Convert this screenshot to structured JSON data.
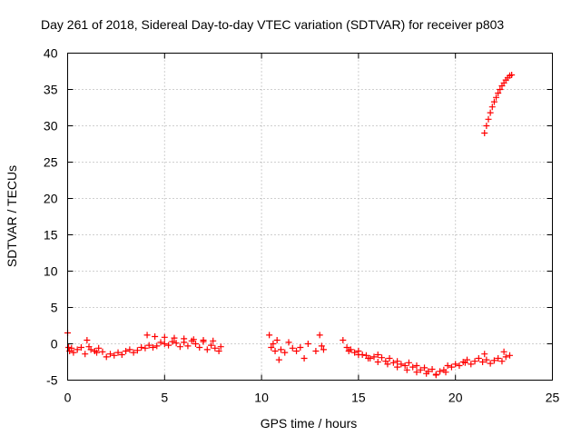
{
  "chart_data": {
    "type": "scatter",
    "title": "Day 261 of 2018, Sidereal Day-to-day VTEC variation (SDTVAR) for receiver p803",
    "xlabel": "GPS time / hours",
    "ylabel": "SDTVAR / TECUs",
    "xlim": [
      0,
      25
    ],
    "ylim": [
      -5,
      40
    ],
    "xticks": [
      "0",
      "5",
      "10",
      "15",
      "20",
      "25"
    ],
    "yticks": [
      "-5",
      "0",
      "5",
      "10",
      "15",
      "20",
      "25",
      "30",
      "35",
      "40"
    ],
    "grid": true,
    "marker": "plus",
    "color": "#ff0000",
    "series": [
      {
        "name": "SDTVAR",
        "x": [
          0.0,
          0.05,
          0.1,
          0.2,
          0.3,
          0.5,
          0.7,
          0.9,
          1.0,
          1.1,
          1.2,
          1.4,
          1.5,
          1.6,
          1.8,
          2.0,
          2.2,
          2.4,
          2.6,
          2.8,
          3.0,
          3.2,
          3.4,
          3.6,
          3.8,
          4.0,
          4.2,
          4.4,
          4.6,
          4.8,
          5.0,
          5.2,
          5.4,
          5.6,
          5.8,
          6.0,
          6.2,
          6.4,
          6.6,
          6.8,
          7.0,
          7.2,
          7.4,
          7.6,
          7.8,
          7.9,
          4.1,
          4.5,
          5.0,
          5.5,
          6.0,
          6.5,
          7.0,
          7.5,
          10.4,
          10.5,
          10.6,
          10.7,
          10.8,
          10.9,
          11.0,
          11.2,
          11.4,
          11.6,
          11.8,
          12.0,
          12.2,
          12.4,
          12.8,
          13.0,
          13.1,
          13.2,
          14.2,
          14.4,
          14.6,
          14.8,
          15.0,
          15.2,
          15.4,
          15.6,
          15.8,
          16.0,
          16.2,
          16.4,
          16.6,
          16.8,
          17.0,
          17.2,
          17.4,
          17.6,
          17.8,
          18.0,
          18.2,
          18.4,
          18.6,
          18.8,
          19.0,
          19.2,
          19.4,
          19.6,
          19.8,
          20.0,
          20.2,
          20.4,
          20.6,
          20.8,
          21.0,
          21.2,
          21.4,
          21.6,
          21.8,
          22.0,
          22.2,
          22.4,
          22.6,
          22.8,
          14.5,
          15.0,
          15.5,
          16.0,
          16.5,
          17.0,
          17.5,
          18.0,
          18.5,
          19.0,
          19.5,
          20.5,
          21.5,
          22.5,
          21.5,
          21.6,
          21.7,
          21.8,
          21.9,
          22.0,
          22.1,
          22.2,
          22.3,
          22.4,
          22.5,
          22.6,
          22.7,
          22.8,
          22.9
        ],
        "y": [
          1.5,
          -0.5,
          -1.0,
          -0.6,
          -1.2,
          -0.8,
          -0.5,
          -1.4,
          0.5,
          -0.4,
          -0.8,
          -1.0,
          -1.2,
          -0.6,
          -1.1,
          -1.8,
          -1.4,
          -1.6,
          -1.2,
          -1.5,
          -1.0,
          -0.8,
          -1.2,
          -0.9,
          -0.5,
          -0.6,
          -0.2,
          -0.5,
          -0.3,
          0.2,
          0.0,
          -0.2,
          0.3,
          0.1,
          -0.4,
          0.2,
          -0.3,
          0.4,
          0.0,
          -0.5,
          0.3,
          -0.8,
          -0.2,
          -0.6,
          -1.0,
          -0.4,
          1.2,
          1.0,
          0.9,
          0.8,
          0.7,
          0.6,
          0.5,
          0.4,
          1.2,
          -0.5,
          0.0,
          -1.0,
          0.5,
          -2.2,
          -0.8,
          -1.2,
          0.2,
          -0.6,
          -1.0,
          -0.5,
          -2.0,
          0.0,
          -1.0,
          1.2,
          -0.3,
          -0.8,
          0.5,
          -0.5,
          -0.8,
          -1.2,
          -1.0,
          -1.5,
          -1.6,
          -2.0,
          -1.8,
          -1.5,
          -1.9,
          -2.4,
          -2.0,
          -2.6,
          -2.4,
          -2.8,
          -3.0,
          -2.6,
          -3.2,
          -3.0,
          -3.6,
          -3.3,
          -3.8,
          -3.5,
          -4.2,
          -3.8,
          -3.6,
          -3.0,
          -3.2,
          -2.8,
          -3.0,
          -2.5,
          -2.2,
          -2.8,
          -2.4,
          -2.0,
          -2.5,
          -2.2,
          -2.7,
          -2.3,
          -2.0,
          -2.4,
          -1.8,
          -1.6,
          -1.0,
          -1.5,
          -2.0,
          -2.5,
          -2.8,
          -3.2,
          -3.6,
          -3.9,
          -4.1,
          -4.3,
          -3.9,
          -2.6,
          -1.4,
          -1.1,
          29.0,
          30.0,
          30.9,
          31.8,
          32.6,
          33.3,
          33.9,
          34.5,
          35.0,
          35.5,
          35.9,
          36.3,
          36.6,
          36.9,
          37.0
        ]
      }
    ]
  }
}
